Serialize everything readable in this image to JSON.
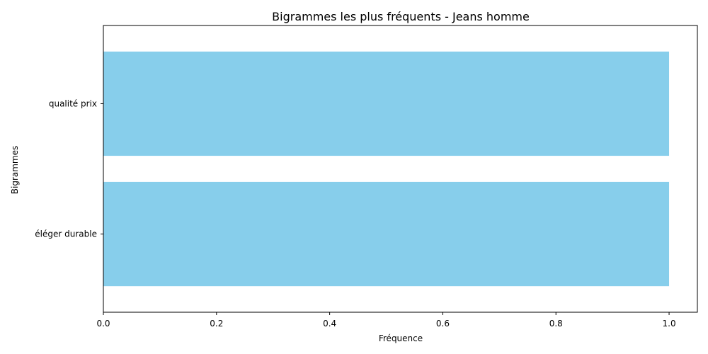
{
  "chart_data": {
    "type": "bar",
    "orientation": "horizontal",
    "title": "Bigrammes les plus fréquents - Jeans homme",
    "xlabel": "Fréquence",
    "ylabel": "Bigrammes",
    "categories": [
      "éléger durable",
      "qualité prix"
    ],
    "values": [
      1,
      1
    ],
    "xlim": [
      0,
      1.05
    ],
    "xticks": [
      "0.0",
      "0.2",
      "0.4",
      "0.6",
      "0.8",
      "1.0"
    ],
    "bar_color": "#87CEEB",
    "grid": false,
    "legend": "none"
  }
}
